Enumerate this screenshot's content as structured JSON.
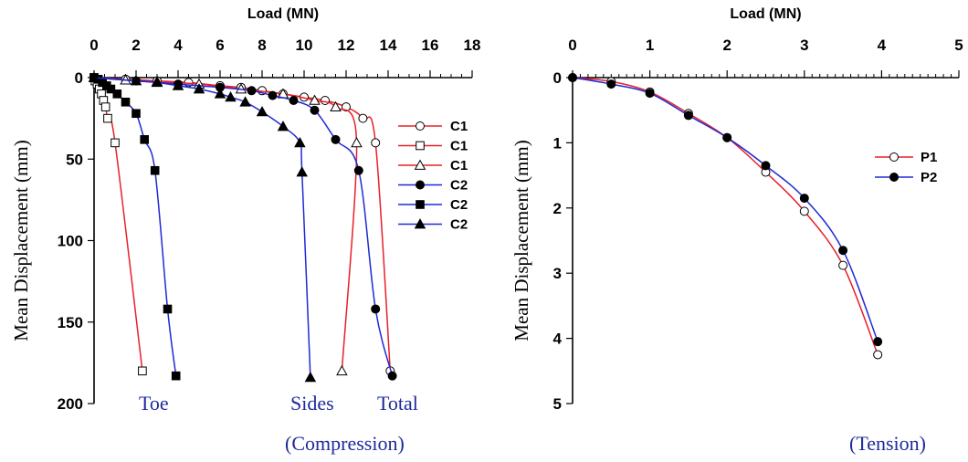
{
  "chart_data": [
    {
      "type": "line",
      "x_axis_title": "Load (MN)",
      "y_axis_title": "Mean Displacement (mm)",
      "xlim": [
        0,
        18
      ],
      "ylim": [
        0,
        200
      ],
      "x_ticks": [
        "0",
        "2",
        "4",
        "6",
        "8",
        "10",
        "12",
        "14",
        "16",
        "18"
      ],
      "y_ticks": [
        "0",
        "50",
        "100",
        "150",
        "200"
      ],
      "y_inverted": true,
      "x_axis_position": "top",
      "legend_position": "right",
      "annotations": [
        "Toe",
        "Sides",
        "Total",
        "(Compression)"
      ],
      "series": [
        {
          "name": "C1",
          "marker": "circle-open",
          "color": "#e8202a",
          "x": [
            0,
            1.5,
            3,
            4.5,
            6,
            7,
            8,
            9,
            10,
            11,
            12,
            12.8,
            13.4,
            14.1
          ],
          "y": [
            0,
            1,
            2,
            3,
            5,
            6,
            8,
            10,
            12,
            14,
            18,
            25,
            40,
            180
          ]
        },
        {
          "name": "C1",
          "marker": "square-open",
          "color": "#e8202a",
          "x": [
            0,
            0.05,
            0.15,
            0.25,
            0.35,
            0.45,
            0.55,
            0.65,
            1.0,
            2.3
          ],
          "y": [
            0,
            2,
            4,
            7,
            10,
            14,
            18,
            25,
            40,
            180
          ]
        },
        {
          "name": "C1",
          "marker": "triangle-open",
          "color": "#e8202a",
          "x": [
            0,
            1.5,
            3,
            5,
            7,
            9,
            10.5,
            11.5,
            12.5,
            11.8
          ],
          "y": [
            0,
            1.5,
            2.5,
            4,
            7,
            10,
            14,
            18,
            40,
            180
          ]
        },
        {
          "name": "C2",
          "marker": "circle-filled",
          "color": "#1f2ad4",
          "x": [
            0,
            2,
            4,
            6,
            7.5,
            8.5,
            9.5,
            10.5,
            11.5,
            12.6,
            13.4,
            14.2
          ],
          "y": [
            0,
            2,
            4,
            6,
            8,
            11,
            14,
            20,
            38,
            57,
            142,
            183
          ]
        },
        {
          "name": "C2",
          "marker": "square-filled",
          "color": "#1f2ad4",
          "x": [
            0,
            0.2,
            0.4,
            0.6,
            0.8,
            1.1,
            1.5,
            2.0,
            2.4,
            2.9,
            3.5,
            3.9
          ],
          "y": [
            0,
            1,
            3,
            5,
            7,
            10,
            15,
            22,
            38,
            57,
            142,
            183
          ]
        },
        {
          "name": "C2",
          "marker": "triangle-filled",
          "color": "#1f2ad4",
          "x": [
            0,
            2,
            3,
            4,
            5,
            6,
            6.5,
            7.2,
            8,
            9,
            9.8,
            9.9,
            10.3
          ],
          "y": [
            0,
            2,
            3,
            5,
            7,
            10,
            12,
            15,
            21,
            30,
            40,
            58,
            184
          ]
        }
      ]
    },
    {
      "type": "line",
      "x_axis_title": "Load (MN)",
      "y_axis_title": "Mean Displacement (mm)",
      "xlim": [
        0,
        5
      ],
      "ylim": [
        0,
        5
      ],
      "x_ticks": [
        "0",
        "1",
        "2",
        "3",
        "4",
        "5"
      ],
      "y_ticks": [
        "0",
        "1",
        "2",
        "3",
        "4",
        "5"
      ],
      "y_inverted": true,
      "x_axis_position": "top",
      "legend_position": "right",
      "annotations": [
        "(Tension)"
      ],
      "series": [
        {
          "name": "P1",
          "marker": "circle-open",
          "color": "#e8202a",
          "x": [
            0,
            0.5,
            1.0,
            1.5,
            2.0,
            2.5,
            3.0,
            3.5,
            3.95
          ],
          "y": [
            0,
            0.06,
            0.22,
            0.55,
            0.92,
            1.45,
            2.05,
            2.88,
            4.25
          ]
        },
        {
          "name": "P2",
          "marker": "circle-filled",
          "color": "#1f2ad4",
          "x": [
            0,
            0.5,
            1.0,
            1.5,
            2.0,
            2.5,
            3.0,
            3.5,
            3.95
          ],
          "y": [
            0,
            0.1,
            0.24,
            0.58,
            0.92,
            1.35,
            1.85,
            2.65,
            4.05
          ]
        }
      ]
    }
  ]
}
